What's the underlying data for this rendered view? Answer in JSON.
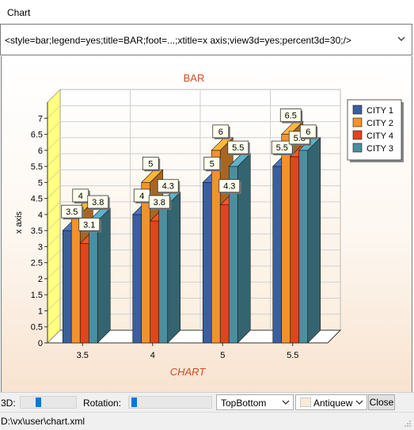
{
  "window": {
    "title": "Chart"
  },
  "command": {
    "value": "<style=bar;legend=yes;title=BAR;foot=...;xtitle=x axis;view3d=yes;percent3d=30;/>"
  },
  "chart_data": {
    "type": "bar",
    "title": "BAR",
    "footer": "CHART",
    "ylabel": "x axis",
    "xlabel": "",
    "categories": [
      "3.5",
      "4",
      "5",
      "5.5"
    ],
    "yticks": [
      "0",
      "0.5",
      "1",
      "1.5",
      "2",
      "2.5",
      "3",
      "3.5",
      "4",
      "4.5",
      "5",
      "5.5",
      "6",
      "6.5",
      "7"
    ],
    "ylim": [
      0,
      7.5
    ],
    "view3d": true,
    "legend_position": "right",
    "grid": true,
    "series": [
      {
        "name": "CITY 1",
        "color": "#3a5f9e",
        "values": [
          3.5,
          4,
          5,
          5.5
        ]
      },
      {
        "name": "CITY 2",
        "color": "#f2922e",
        "values": [
          4,
          5,
          6,
          6.5
        ]
      },
      {
        "name": "CITY 4",
        "color": "#e0451b",
        "values": [
          3.1,
          3.8,
          4.3,
          5.8
        ]
      },
      {
        "name": "CITY 3",
        "color": "#4a8fa0",
        "values": [
          3.8,
          4.3,
          5.5,
          6
        ]
      }
    ]
  },
  "toolbar": {
    "label_3d": "3D:",
    "slider_3d": 0.3,
    "label_rotation": "Rotation:",
    "slider_rotation": 0.03,
    "gradient_option": "TopBottom",
    "color_option": "Antiquew",
    "close_label": "Close"
  },
  "status": {
    "path": "D:\\vx\\user\\chart.xml"
  }
}
